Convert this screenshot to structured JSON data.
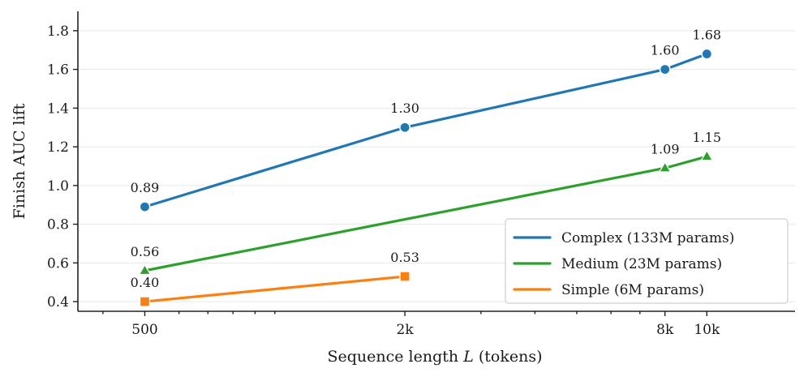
{
  "chart_data": {
    "type": "line",
    "xscale": "log",
    "xlabel": "Sequence length L (tokens)",
    "xlabel_prefix": "Sequence length ",
    "xlabel_var": "L",
    "xlabel_suffix": " (tokens)",
    "ylabel": "Finish AUC lift",
    "xlim": [
      350,
      16000
    ],
    "ylim": [
      0.35,
      1.9
    ],
    "grid": true,
    "legend_position": "lower-right",
    "x_ticks": [
      {
        "value": 500,
        "label": "500"
      },
      {
        "value": 2000,
        "label": "2k"
      },
      {
        "value": 8000,
        "label": "8k"
      },
      {
        "value": 10000,
        "label": "10k"
      }
    ],
    "y_ticks": [
      {
        "value": 0.4,
        "label": "0.4"
      },
      {
        "value": 0.6,
        "label": "0.6"
      },
      {
        "value": 0.8,
        "label": "0.8"
      },
      {
        "value": 1.0,
        "label": "1.0"
      },
      {
        "value": 1.2,
        "label": "1.2"
      },
      {
        "value": 1.4,
        "label": "1.4"
      },
      {
        "value": 1.6,
        "label": "1.6"
      },
      {
        "value": 1.8,
        "label": "1.8"
      }
    ],
    "series": [
      {
        "key": "complex",
        "name": "Complex (133M params)",
        "color": "#1f77b4",
        "marker": "circle",
        "points": [
          {
            "x": 500,
            "y": 0.89,
            "label": "0.89"
          },
          {
            "x": 2000,
            "y": 1.3,
            "label": "1.30"
          },
          {
            "x": 8000,
            "y": 1.6,
            "label": "1.60"
          },
          {
            "x": 10000,
            "y": 1.68,
            "label": "1.68"
          }
        ]
      },
      {
        "key": "medium",
        "name": "Medium (23M params)",
        "color": "#2ca02c",
        "marker": "triangle",
        "points": [
          {
            "x": 500,
            "y": 0.56,
            "label": "0.56"
          },
          {
            "x": 8000,
            "y": 1.09,
            "label": "1.09"
          },
          {
            "x": 10000,
            "y": 1.15,
            "label": "1.15"
          }
        ]
      },
      {
        "key": "simple",
        "name": "Simple (6M params)",
        "color": "#ff7f0e",
        "marker": "square",
        "points": [
          {
            "x": 500,
            "y": 0.4,
            "label": "0.40"
          },
          {
            "x": 2000,
            "y": 0.53,
            "label": "0.53"
          }
        ]
      }
    ]
  }
}
